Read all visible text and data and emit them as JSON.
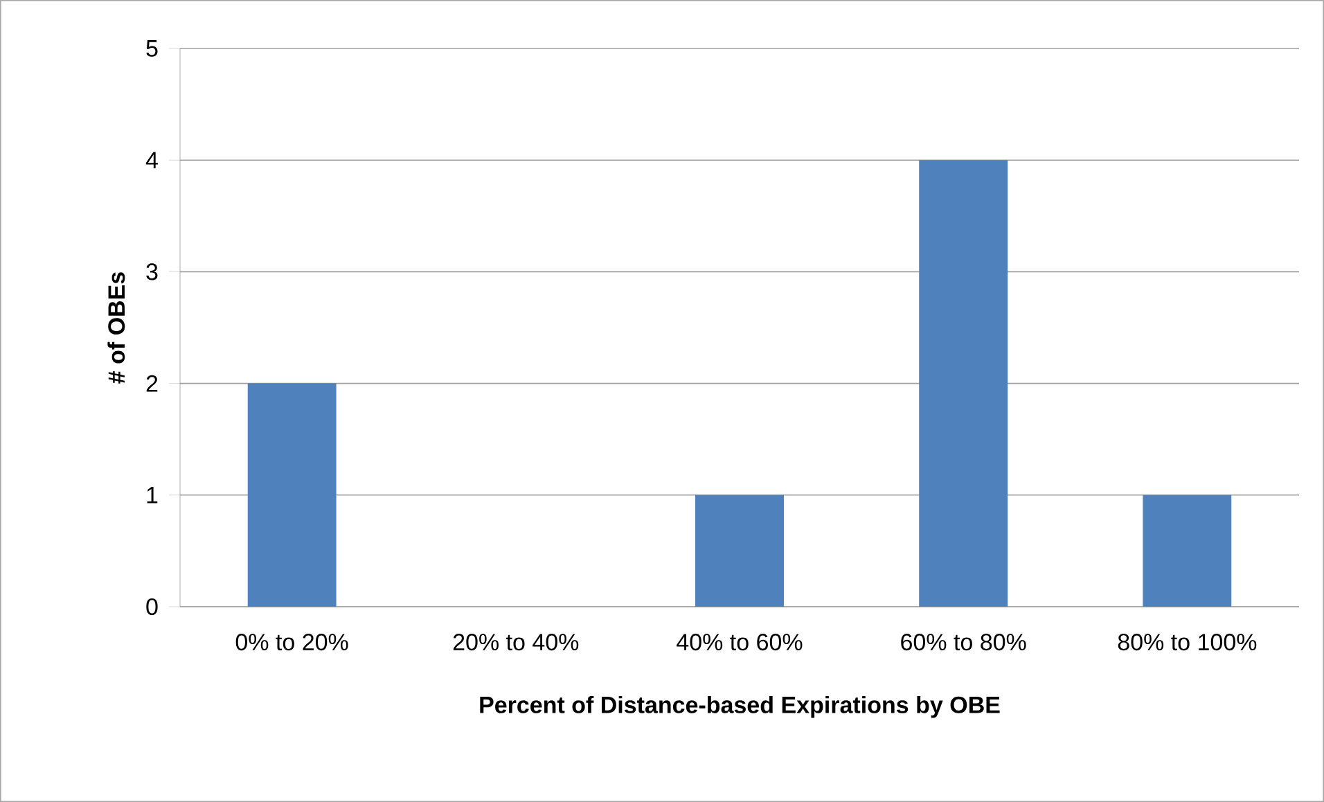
{
  "chart_data": {
    "type": "bar",
    "xlabel": "Percent of Distance-based  Expirations by OBE",
    "ylabel": "# of OBEs",
    "categories": [
      "0% to 20%",
      "20% to 40%",
      "40% to 60%",
      "60% to 80%",
      "80% to 100%"
    ],
    "values": [
      2,
      0,
      1,
      4,
      1
    ],
    "color": "#4f81bd",
    "ylim": [
      0,
      5
    ],
    "yticks": [
      0,
      1,
      2,
      3,
      4,
      5
    ],
    "grid": "y"
  }
}
